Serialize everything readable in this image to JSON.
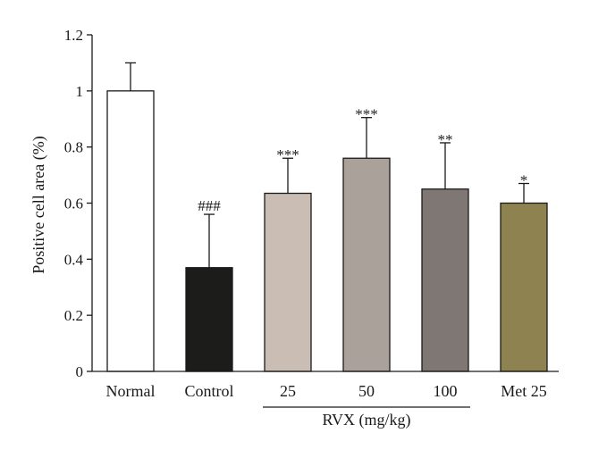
{
  "chart_data": {
    "type": "bar",
    "title": "",
    "xlabel": "",
    "ylabel": "Positive cell area (%)",
    "ylim": [
      0,
      1.2
    ],
    "yticks": [
      "0",
      "0.2",
      "0.4",
      "0.6",
      "0.8",
      "1",
      "1.2"
    ],
    "categories": [
      "Normal",
      "Control",
      "25",
      "50",
      "100",
      "Met 25"
    ],
    "values": [
      1.0,
      0.37,
      0.635,
      0.76,
      0.65,
      0.6
    ],
    "error_upper": [
      0.1,
      0.19,
      0.125,
      0.145,
      0.165,
      0.07
    ],
    "significance": [
      "",
      "###",
      "***",
      "***",
      "**",
      "*"
    ],
    "bar_colors": [
      "#ffffff",
      "#1c1c1a",
      "#c9bdb4",
      "#aaa19a",
      "#7f7774",
      "#8e8250"
    ],
    "group_label": "RVX (mg/kg)",
    "grid": false,
    "legend": "none"
  }
}
